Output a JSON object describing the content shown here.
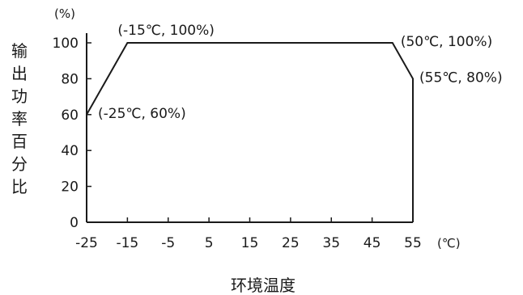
{
  "chart_data": {
    "type": "area",
    "title": "",
    "xlabel": "环境温度",
    "ylabel": "输出功率百分比",
    "x_unit": "(℃)",
    "y_unit": "(%)",
    "xlim": [
      -25,
      55
    ],
    "ylim": [
      0,
      100
    ],
    "x_ticks": [
      -25,
      -15,
      -5,
      5,
      15,
      25,
      35,
      45,
      55
    ],
    "y_ticks": [
      0,
      20,
      40,
      60,
      80,
      100
    ],
    "grid": false,
    "series": [
      {
        "points": [
          {
            "x": -25,
            "y": 60
          },
          {
            "x": -15,
            "y": 100
          },
          {
            "x": 50,
            "y": 100
          },
          {
            "x": 55,
            "y": 80
          }
        ]
      }
    ],
    "annotations": [
      {
        "text": "(-25℃, 60%)",
        "x": -25,
        "y": 60
      },
      {
        "text": "(-15℃, 100%)",
        "x": -15,
        "y": 100
      },
      {
        "text": "(50℃, 100%)",
        "x": 50,
        "y": 100
      },
      {
        "text": "(55℃, 80%)",
        "x": 55,
        "y": 80
      }
    ]
  },
  "colors": {
    "line": "#1a1a1a",
    "text": "#1a1a1a"
  }
}
